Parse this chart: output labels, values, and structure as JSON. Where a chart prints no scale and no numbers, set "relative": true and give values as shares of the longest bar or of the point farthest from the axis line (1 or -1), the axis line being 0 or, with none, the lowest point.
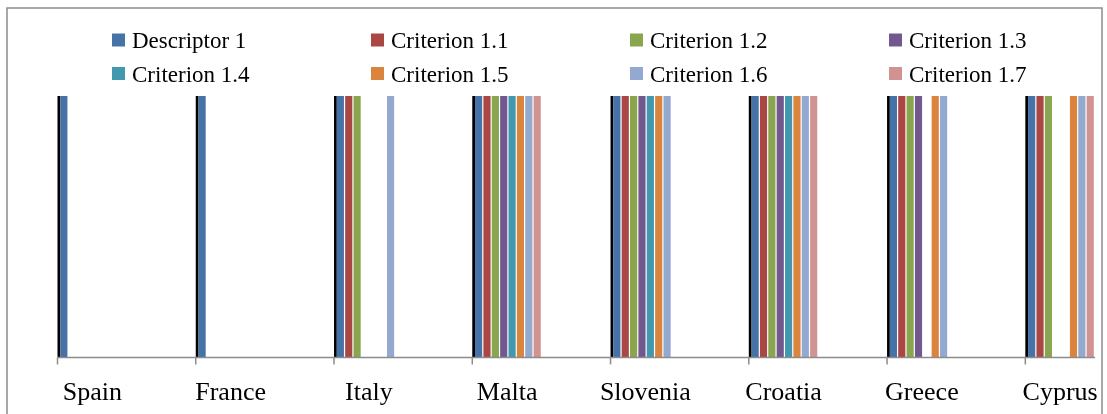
{
  "chart_data": {
    "type": "bar",
    "relative": true,
    "legend": "top",
    "categories": [
      "Spain",
      "France",
      "Italy",
      "Malta",
      "Slovenia",
      "Croatia",
      "Greece",
      "Cyprus"
    ],
    "series": [
      {
        "color": "#000000",
        "values": [
          1,
          1,
          1,
          1,
          1,
          1,
          1,
          1
        ]
      },
      {
        "name": "Descriptor 1",
        "color": "#4572a7",
        "values": [
          1,
          1,
          1,
          1,
          1,
          1,
          1,
          1
        ]
      },
      {
        "name": "Criterion 1.1",
        "color": "#aa4643",
        "values": [
          null,
          null,
          1,
          1,
          1,
          1,
          1,
          1
        ]
      },
      {
        "name": "Criterion 1.2",
        "color": "#89a54e",
        "values": [
          null,
          null,
          1,
          1,
          1,
          1,
          1,
          1
        ]
      },
      {
        "name": "Criterion 1.3",
        "color": "#71588f",
        "values": [
          null,
          null,
          null,
          1,
          1,
          1,
          1,
          null
        ]
      },
      {
        "name": "Criterion 1.4",
        "color": "#4198af",
        "values": [
          null,
          null,
          null,
          1,
          1,
          1,
          null,
          null
        ]
      },
      {
        "name": "Criterion 1.5",
        "color": "#db843d",
        "values": [
          null,
          null,
          null,
          1,
          1,
          1,
          1,
          1
        ]
      },
      {
        "name": "Criterion 1.6",
        "color": "#93a9cf",
        "values": [
          null,
          null,
          1,
          1,
          1,
          1,
          1,
          1
        ]
      },
      {
        "name": "Criterion 1.7",
        "color": "#d19392",
        "values": [
          null,
          null,
          null,
          1,
          null,
          1,
          null,
          1
        ]
      }
    ]
  }
}
